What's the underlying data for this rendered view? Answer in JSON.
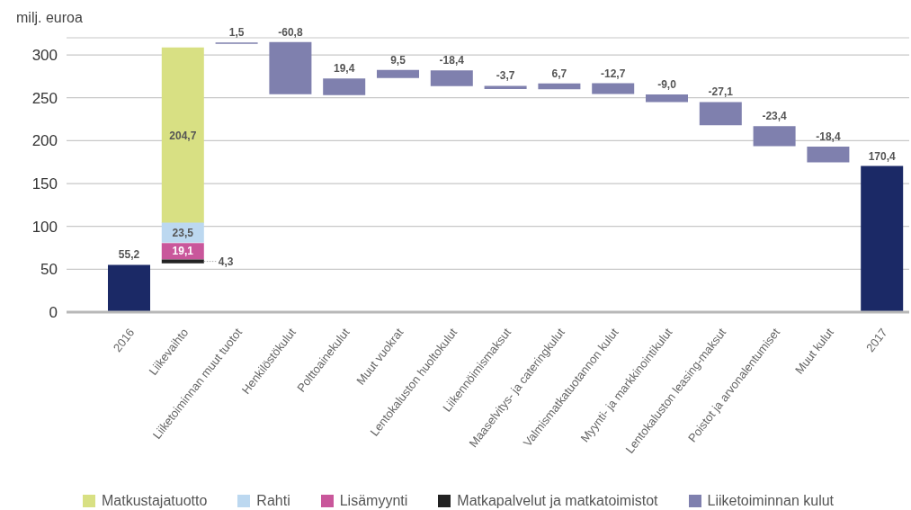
{
  "chart_data": {
    "type": "bar",
    "ylabel": "milj. euroa",
    "categories": [
      "2016",
      "Liikevaihto",
      "Liiketoiminnan muut tuotot",
      "Henkilöstökulut",
      "Polttoainekulut",
      "Muut vuokrat",
      "Lentokaluston huoltokulut",
      "Liikennöimismaksut",
      "Maaselvitys- ja cateringkulut",
      "Valmismatkatuotannon kulut",
      "Myynti- ja markkinointikulut",
      "Lentokaluston leasing-maksut",
      "Poistot ja arvonalentumiset",
      "Muut kulut",
      "2017"
    ],
    "series": [
      {
        "color": "#1b2966",
        "values": [
          55.2,
          null,
          null,
          null,
          null,
          null,
          null,
          null,
          null,
          null,
          null,
          null,
          null,
          null,
          170.4
        ],
        "value_labels": [
          "55,2",
          null,
          null,
          null,
          null,
          null,
          null,
          null,
          null,
          null,
          null,
          null,
          null,
          null,
          "170,4"
        ]
      },
      {
        "name": "Matkustajatuotto",
        "color": "#d8e083",
        "values": [
          null,
          204.7,
          null,
          null,
          null,
          null,
          null,
          null,
          null,
          null,
          null,
          null,
          null,
          null,
          null
        ],
        "base": [
          null,
          104,
          null,
          null,
          null,
          null,
          null,
          null,
          null,
          null,
          null,
          null,
          null,
          null,
          null
        ],
        "value_labels": [
          null,
          "204,7",
          null,
          null,
          null,
          null,
          null,
          null,
          null,
          null,
          null,
          null,
          null,
          null,
          null
        ]
      },
      {
        "name": "Rahti",
        "color": "#bcd8f0",
        "values": [
          null,
          23.5,
          null,
          null,
          null,
          null,
          null,
          null,
          null,
          null,
          null,
          null,
          null,
          null,
          null
        ],
        "base": [
          null,
          81,
          null,
          null,
          null,
          null,
          null,
          null,
          null,
          null,
          null,
          null,
          null,
          null,
          null
        ],
        "value_labels": [
          null,
          "23,5",
          null,
          null,
          null,
          null,
          null,
          null,
          null,
          null,
          null,
          null,
          null,
          null,
          null
        ]
      },
      {
        "name": "Lisämyynti",
        "color": "#c9579b",
        "values": [
          null,
          19.1,
          null,
          null,
          null,
          null,
          null,
          null,
          null,
          null,
          null,
          null,
          null,
          null,
          null
        ],
        "base": [
          null,
          61.5,
          null,
          null,
          null,
          null,
          null,
          null,
          null,
          null,
          null,
          null,
          null,
          null,
          null
        ],
        "value_labels": [
          null,
          "19,1",
          null,
          null,
          null,
          null,
          null,
          null,
          null,
          null,
          null,
          null,
          null,
          null,
          null
        ]
      },
      {
        "name": "Matkapalvelut ja matkatoimistot",
        "color": "#222222",
        "values": [
          null,
          4.3,
          null,
          null,
          null,
          null,
          null,
          null,
          null,
          null,
          null,
          null,
          null,
          null,
          null
        ],
        "base": [
          null,
          57,
          null,
          null,
          null,
          null,
          null,
          null,
          null,
          null,
          null,
          null,
          null,
          null,
          null
        ],
        "value_labels": [
          null,
          "4,3",
          null,
          null,
          null,
          null,
          null,
          null,
          null,
          null,
          null,
          null,
          null,
          null,
          null
        ]
      },
      {
        "name": "Liiketoiminnan kulut",
        "color": "#7f80ae",
        "values": [
          null,
          null,
          1.5,
          -60.8,
          19.4,
          9.5,
          -18.4,
          -3.7,
          6.7,
          -12.7,
          -9.0,
          -27.1,
          -23.4,
          -18.4,
          null
        ],
        "base": [
          null,
          null,
          313,
          315,
          253,
          273,
          282,
          264,
          260,
          267,
          254,
          245,
          217,
          193,
          null
        ],
        "value_labels": [
          null,
          null,
          "1,5",
          "-60,8",
          "19,4",
          "9,5",
          "-18,4",
          "-3,7",
          "6,7",
          "-12,7",
          "-9,0",
          "-27,1",
          "-23,4",
          "-18,4",
          null
        ]
      }
    ],
    "ylim": [
      0,
      320
    ],
    "yticks": [
      0,
      50,
      100,
      150,
      200,
      250,
      300
    ],
    "grid": "y",
    "legend": "bottom"
  }
}
